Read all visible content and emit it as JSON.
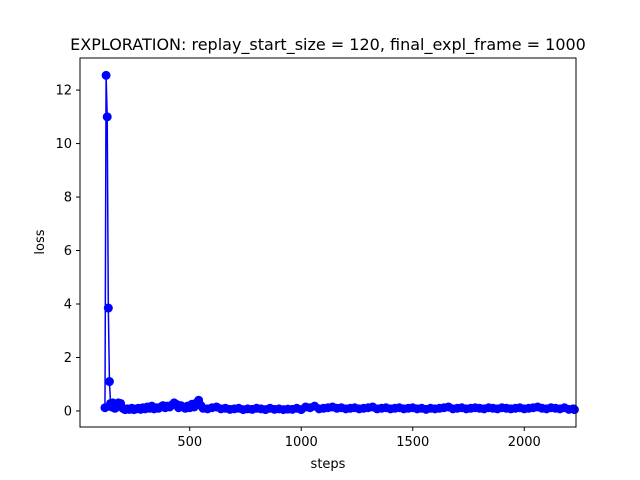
{
  "chart_data": {
    "type": "line",
    "title": "EXPLORATION: replay_start_size = 120, final_expl_frame = 1000",
    "xlabel": "steps",
    "ylabel": "loss",
    "xlim": [
      8,
      2232
    ],
    "ylim": [
      -0.6,
      13.2
    ],
    "xticks": [
      500,
      1000,
      1500,
      2000
    ],
    "yticks": [
      0,
      2,
      4,
      6,
      8,
      10,
      12
    ],
    "grid": false,
    "colors": {
      "series": "#0000ff"
    },
    "series": [
      {
        "marker": "circle",
        "x": [
          120,
          125,
          130,
          135,
          140,
          145,
          150,
          155,
          160,
          165,
          170,
          180,
          190,
          200,
          210,
          220,
          230,
          240,
          250,
          260,
          270,
          280,
          290,
          300,
          310,
          320,
          330,
          340,
          350,
          360,
          370,
          380,
          390,
          400,
          410,
          420,
          430,
          440,
          450,
          460,
          470,
          480,
          490,
          500,
          510,
          520,
          530,
          540,
          550,
          560,
          580,
          600,
          620,
          640,
          660,
          680,
          700,
          720,
          740,
          760,
          780,
          800,
          820,
          840,
          860,
          880,
          900,
          920,
          940,
          960,
          980,
          1000,
          1020,
          1040,
          1060,
          1080,
          1100,
          1120,
          1140,
          1160,
          1180,
          1200,
          1220,
          1240,
          1260,
          1280,
          1300,
          1320,
          1340,
          1360,
          1380,
          1400,
          1420,
          1440,
          1460,
          1480,
          1500,
          1520,
          1540,
          1560,
          1580,
          1600,
          1620,
          1640,
          1660,
          1680,
          1700,
          1720,
          1740,
          1760,
          1780,
          1800,
          1820,
          1840,
          1860,
          1880,
          1900,
          1920,
          1940,
          1960,
          1980,
          2000,
          2020,
          2040,
          2060,
          2080,
          2100,
          2120,
          2140,
          2160,
          2180,
          2200,
          2220,
          2225
        ],
        "y": [
          0.12,
          12.55,
          11.0,
          3.85,
          1.1,
          0.28,
          0.15,
          0.3,
          0.12,
          0.1,
          0.15,
          0.3,
          0.28,
          0.1,
          0.05,
          0.08,
          0.06,
          0.1,
          0.05,
          0.08,
          0.1,
          0.06,
          0.12,
          0.08,
          0.15,
          0.1,
          0.18,
          0.08,
          0.12,
          0.1,
          0.15,
          0.2,
          0.12,
          0.18,
          0.15,
          0.22,
          0.3,
          0.25,
          0.12,
          0.2,
          0.15,
          0.1,
          0.18,
          0.12,
          0.25,
          0.15,
          0.3,
          0.4,
          0.2,
          0.1,
          0.08,
          0.12,
          0.15,
          0.08,
          0.1,
          0.06,
          0.08,
          0.1,
          0.05,
          0.08,
          0.06,
          0.1,
          0.08,
          0.05,
          0.1,
          0.06,
          0.08,
          0.05,
          0.07,
          0.06,
          0.1,
          0.05,
          0.15,
          0.12,
          0.18,
          0.08,
          0.1,
          0.12,
          0.15,
          0.1,
          0.12,
          0.08,
          0.1,
          0.12,
          0.08,
          0.1,
          0.12,
          0.15,
          0.08,
          0.1,
          0.12,
          0.08,
          0.1,
          0.12,
          0.08,
          0.1,
          0.12,
          0.08,
          0.1,
          0.06,
          0.1,
          0.08,
          0.1,
          0.12,
          0.15,
          0.08,
          0.1,
          0.12,
          0.08,
          0.1,
          0.12,
          0.1,
          0.08,
          0.12,
          0.1,
          0.08,
          0.12,
          0.1,
          0.08,
          0.1,
          0.12,
          0.08,
          0.1,
          0.12,
          0.15,
          0.1,
          0.08,
          0.12,
          0.1,
          0.08,
          0.12,
          0.06,
          0.08,
          0.05
        ]
      }
    ]
  }
}
